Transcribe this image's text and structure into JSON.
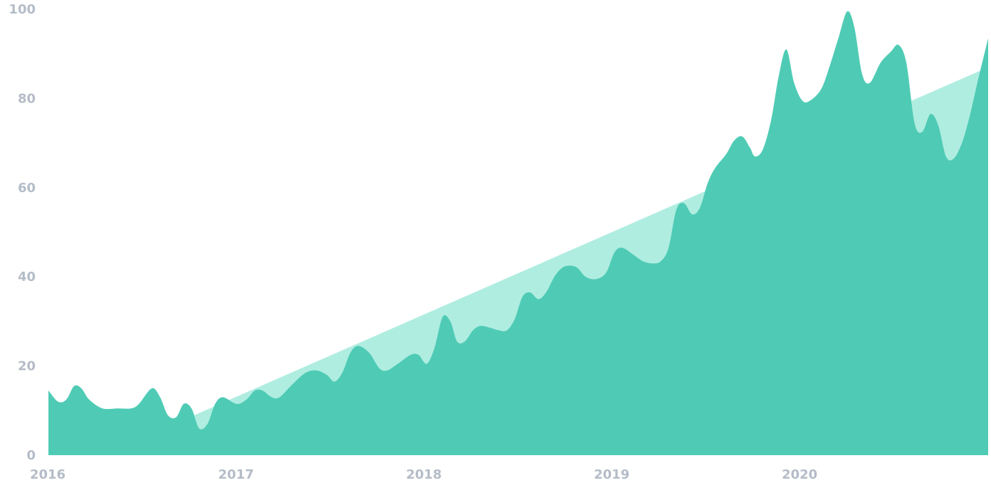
{
  "chart_data": {
    "type": "area",
    "title": "",
    "xlabel": "",
    "ylabel": "",
    "ylim": [
      0,
      100
    ],
    "xlim": [
      "2016-01-01",
      "2020-12-31"
    ],
    "y_ticks": [
      "0",
      "20",
      "40",
      "60",
      "80",
      "100"
    ],
    "x_ticks": [
      {
        "date": "2016-01-01",
        "label": "2016"
      },
      {
        "date": "2017-01-01",
        "label": "2017"
      },
      {
        "date": "2018-01-01",
        "label": "2018"
      },
      {
        "date": "2019-01-01",
        "label": "2019"
      },
      {
        "date": "2020-01-01",
        "label": "2020"
      }
    ],
    "grid": false,
    "series": [
      {
        "role": "trend",
        "points": [
          [
            "2016-10-01",
            8.5
          ],
          [
            "2020-12-31",
            87
          ]
        ]
      },
      {
        "role": "observed",
        "points": [
          [
            "2016-01-01",
            14.5
          ],
          [
            "2016-01-20",
            12
          ],
          [
            "2016-02-05",
            12.5
          ],
          [
            "2016-02-20",
            15.5
          ],
          [
            "2016-03-05",
            15
          ],
          [
            "2016-03-20",
            12.5
          ],
          [
            "2016-04-15",
            10.5
          ],
          [
            "2016-05-15",
            10.5
          ],
          [
            "2016-06-10",
            10.5
          ],
          [
            "2016-06-25",
            11.5
          ],
          [
            "2016-07-20",
            15
          ],
          [
            "2016-08-05",
            13
          ],
          [
            "2016-08-20",
            9
          ],
          [
            "2016-09-05",
            8.5
          ],
          [
            "2016-09-20",
            11.5
          ],
          [
            "2016-10-05",
            10.5
          ],
          [
            "2016-10-20",
            6
          ],
          [
            "2016-11-05",
            7
          ],
          [
            "2016-11-20",
            11.5
          ],
          [
            "2016-12-05",
            13
          ],
          [
            "2017-01-01",
            11.5
          ],
          [
            "2017-01-20",
            12.5
          ],
          [
            "2017-02-05",
            14.5
          ],
          [
            "2017-02-20",
            14.5
          ],
          [
            "2017-03-10",
            13
          ],
          [
            "2017-03-25",
            13
          ],
          [
            "2017-04-20",
            16
          ],
          [
            "2017-05-15",
            18.5
          ],
          [
            "2017-06-05",
            19
          ],
          [
            "2017-06-25",
            18
          ],
          [
            "2017-07-10",
            16.5
          ],
          [
            "2017-07-25",
            18.5
          ],
          [
            "2017-08-10",
            23
          ],
          [
            "2017-08-25",
            24.5
          ],
          [
            "2017-09-15",
            23
          ],
          [
            "2017-10-05",
            19.5
          ],
          [
            "2017-10-20",
            19
          ],
          [
            "2017-11-10",
            20.5
          ],
          [
            "2017-12-05",
            22.5
          ],
          [
            "2017-12-20",
            22.5
          ],
          [
            "2018-01-05",
            20.5
          ],
          [
            "2018-01-20",
            24
          ],
          [
            "2018-02-05",
            31
          ],
          [
            "2018-02-20",
            30
          ],
          [
            "2018-03-05",
            25.5
          ],
          [
            "2018-03-20",
            25.5
          ],
          [
            "2018-04-05",
            28
          ],
          [
            "2018-04-20",
            29
          ],
          [
            "2018-05-10",
            28.5
          ],
          [
            "2018-05-25",
            28
          ],
          [
            "2018-06-10",
            28
          ],
          [
            "2018-06-25",
            30.5
          ],
          [
            "2018-07-10",
            35.5
          ],
          [
            "2018-07-25",
            36.5
          ],
          [
            "2018-08-10",
            35
          ],
          [
            "2018-08-25",
            36.5
          ],
          [
            "2018-09-10",
            40
          ],
          [
            "2018-09-25",
            42
          ],
          [
            "2018-10-10",
            42.5
          ],
          [
            "2018-10-25",
            42
          ],
          [
            "2018-11-10",
            40
          ],
          [
            "2018-12-01",
            39.5
          ],
          [
            "2018-12-20",
            41
          ],
          [
            "2019-01-05",
            45.5
          ],
          [
            "2019-01-20",
            46.5
          ],
          [
            "2019-02-10",
            45
          ],
          [
            "2019-03-01",
            43.5
          ],
          [
            "2019-03-20",
            43
          ],
          [
            "2019-04-05",
            43.5
          ],
          [
            "2019-04-20",
            46.5
          ],
          [
            "2019-05-05",
            55
          ],
          [
            "2019-05-20",
            56.5
          ],
          [
            "2019-06-05",
            54
          ],
          [
            "2019-06-20",
            55.5
          ],
          [
            "2019-07-05",
            61
          ],
          [
            "2019-07-20",
            64.5
          ],
          [
            "2019-08-10",
            67.5
          ],
          [
            "2019-08-25",
            70.5
          ],
          [
            "2019-09-10",
            71.5
          ],
          [
            "2019-09-25",
            69
          ],
          [
            "2019-10-05",
            67
          ],
          [
            "2019-10-20",
            68.5
          ],
          [
            "2019-11-05",
            75
          ],
          [
            "2019-11-20",
            85
          ],
          [
            "2019-12-05",
            91
          ],
          [
            "2019-12-20",
            83.5
          ],
          [
            "2020-01-05",
            79.5
          ],
          [
            "2020-01-20",
            79.5
          ],
          [
            "2020-02-10",
            82
          ],
          [
            "2020-02-25",
            86.5
          ],
          [
            "2020-03-15",
            93.5
          ],
          [
            "2020-04-01",
            99.5
          ],
          [
            "2020-04-15",
            96
          ],
          [
            "2020-04-30",
            85.5
          ],
          [
            "2020-05-15",
            83.5
          ],
          [
            "2020-06-05",
            88
          ],
          [
            "2020-06-25",
            90.5
          ],
          [
            "2020-07-10",
            92
          ],
          [
            "2020-07-25",
            88
          ],
          [
            "2020-08-10",
            74.5
          ],
          [
            "2020-08-25",
            72.5
          ],
          [
            "2020-09-10",
            76.5
          ],
          [
            "2020-09-25",
            74
          ],
          [
            "2020-10-10",
            67
          ],
          [
            "2020-10-25",
            66.5
          ],
          [
            "2020-11-10",
            70
          ],
          [
            "2020-11-25",
            76
          ],
          [
            "2020-12-10",
            83.5
          ],
          [
            "2020-12-31",
            93.5
          ]
        ]
      }
    ]
  },
  "colors": {
    "trend_fill": "#b0ede1",
    "observed_fill": "#4fcbb5",
    "tick_text": "#b4bcc7",
    "background": "#ffffff"
  }
}
